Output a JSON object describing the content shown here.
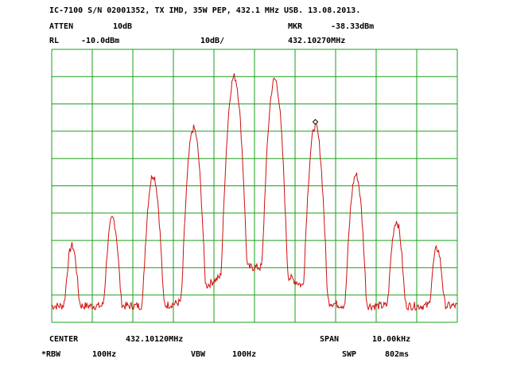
{
  "header": {
    "title": "IC-7100 S/N 02001352, TX IMD, 35W PEP, 432.1 MHz USB. 13.08.2013.",
    "atten_label": "ATTEN",
    "atten_value": "10dB",
    "mkr_label": "MKR",
    "mkr_value": "-38.33dBm",
    "rl_label": "RL",
    "rl_value": "-10.0dBm",
    "scale": "10dB/",
    "mkr_freq": "432.10270MHz"
  },
  "footer": {
    "center_label": "CENTER",
    "center_value": "432.10120MHz",
    "span_label": "SPAN",
    "span_value": "10.00kHz",
    "rbw_label": "*RBW",
    "rbw_value": "100Hz",
    "vbw_label": "VBW",
    "vbw_value": "100Hz",
    "swp_label": "SWP",
    "swp_value": "802ms"
  },
  "colors": {
    "grid": "#1aa01a",
    "trace": "#d01010",
    "marker": "#000000"
  },
  "chart_data": {
    "type": "line",
    "xlim": [
      432.0962,
      432.1062
    ],
    "ylim": [
      -110,
      -10
    ],
    "grid": true,
    "grid_divisions": {
      "x": 10,
      "y": 10
    },
    "noise_floor_dbm": -104,
    "peaks": [
      {
        "freq_mhz": 432.0967,
        "level_dbm": -82
      },
      {
        "freq_mhz": 432.0977,
        "level_dbm": -72
      },
      {
        "freq_mhz": 432.0987,
        "level_dbm": -56
      },
      {
        "freq_mhz": 432.0997,
        "level_dbm": -39
      },
      {
        "freq_mhz": 432.1007,
        "level_dbm": -20
      },
      {
        "freq_mhz": 432.1017,
        "level_dbm": -21
      },
      {
        "freq_mhz": 432.1027,
        "level_dbm": -38
      },
      {
        "freq_mhz": 432.1037,
        "level_dbm": -56
      },
      {
        "freq_mhz": 432.1047,
        "level_dbm": -73
      },
      {
        "freq_mhz": 432.1057,
        "level_dbm": -83
      }
    ],
    "marker": {
      "freq_mhz": 432.1027,
      "level_dbm": -38.33
    }
  }
}
